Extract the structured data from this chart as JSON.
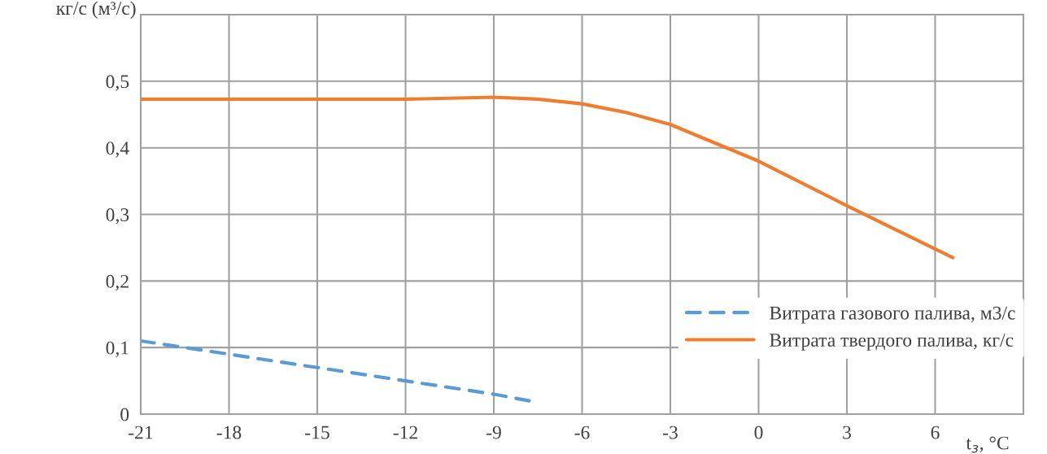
{
  "chart_data": {
    "type": "line",
    "xlabel": "t$_{з}$, °C",
    "ylabel": "кг/с (м³/с)",
    "xlim": [
      -21,
      9
    ],
    "ylim": [
      0,
      0.6
    ],
    "xticks": [
      -21,
      -18,
      -15,
      -12,
      -9,
      -6,
      -3,
      0,
      3,
      6,
      {
        "value": 9,
        "label": null
      }
    ],
    "yticks": [
      0,
      {
        "value": 0.1,
        "label": "0,1"
      },
      {
        "value": 0.2,
        "label": "0,2"
      },
      {
        "value": 0.3,
        "label": "0,3"
      },
      {
        "value": 0.4,
        "label": "0,4"
      },
      {
        "value": 0.5,
        "label": "0,5"
      },
      {
        "value": 0.6,
        "label": null
      }
    ],
    "grid": true,
    "legend": "lower right",
    "series": [
      {
        "name": "Витрата газового палива, м3/с",
        "color": "#5b9bd5",
        "line_style": "dashed",
        "x": [
          -21,
          -18,
          -15,
          -12,
          -9,
          -7.8
        ],
        "values": [
          0.11,
          0.09,
          0.07,
          0.05,
          0.03,
          0.02
        ]
      },
      {
        "name": "Витрата твердого палива, кг/с",
        "color": "#ed7d31",
        "line_style": "solid",
        "x": [
          -21,
          -18,
          -15,
          -12,
          -9,
          -7.5,
          -6,
          -4.5,
          -3,
          0,
          3,
          6.6
        ],
        "values": [
          0.473,
          0.473,
          0.473,
          0.473,
          0.476,
          0.473,
          0.466,
          0.453,
          0.435,
          0.38,
          0.313,
          0.235
        ]
      }
    ]
  }
}
